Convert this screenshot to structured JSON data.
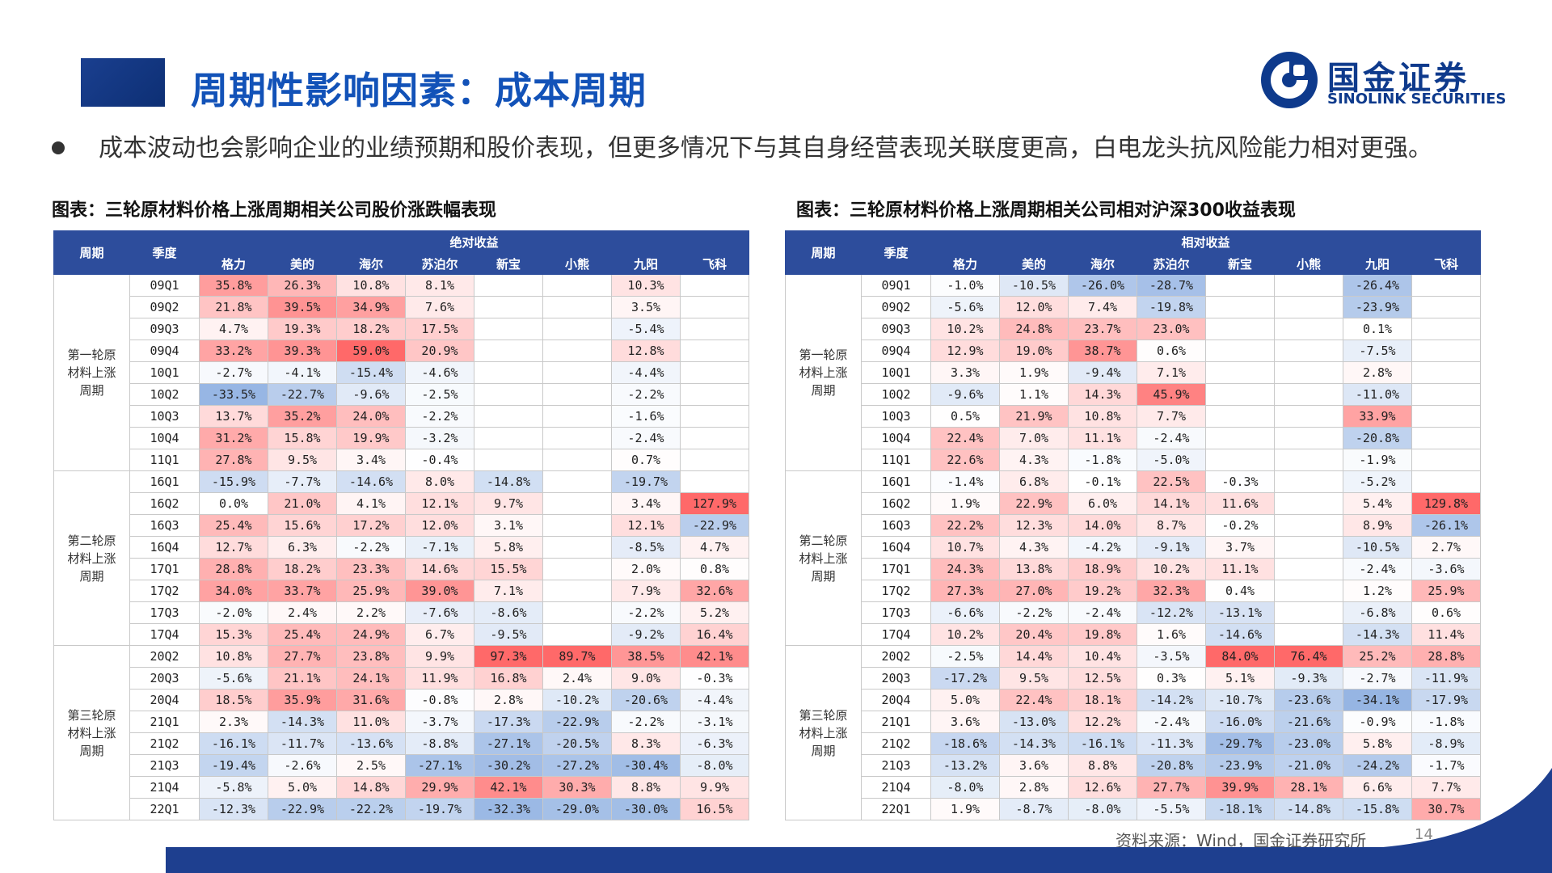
{
  "header": {
    "title": "周期性影响因素：成本周期"
  },
  "logo": {
    "cn": "国金证券",
    "en": "SINOLINK SECURITIES"
  },
  "bullet": {
    "text": "成本波动也会影响企业的业绩预期和股价表现，但更多情况下与其自身经营表现关联度更高，白电龙头抗风险能力相对更强。"
  },
  "footer": {
    "source": "资料来源：Wind，国金证券研究所",
    "page": "14"
  },
  "colors": {
    "header_bg": "#2d4d9c",
    "title": "#1252b8",
    "neg": "#4a78c8",
    "pos": "#f06060"
  },
  "tables": [
    {
      "title": "图表：三轮原材料价格上涨周期相关公司股价涨跌幅表现",
      "h_period": "周期",
      "h_quarter": "季度",
      "h_group": "绝对收益",
      "companies": [
        "格力",
        "美的",
        "海尔",
        "苏泊尔",
        "新宝",
        "小熊",
        "九阳",
        "飞科"
      ],
      "blocks": [
        {
          "label": [
            "第一轮原",
            "材料上涨",
            "周期"
          ],
          "rows": [
            [
              "09Q1",
              "35.8%",
              "26.3%",
              "10.8%",
              "8.1%",
              "",
              "",
              "10.3%",
              ""
            ],
            [
              "09Q2",
              "21.8%",
              "39.5%",
              "34.9%",
              "7.6%",
              "",
              "",
              "3.5%",
              ""
            ],
            [
              "09Q3",
              "4.7%",
              "19.3%",
              "18.2%",
              "17.5%",
              "",
              "",
              "-5.4%",
              ""
            ],
            [
              "09Q4",
              "33.2%",
              "39.3%",
              "59.0%",
              "20.9%",
              "",
              "",
              "12.8%",
              ""
            ],
            [
              "10Q1",
              "-2.7%",
              "-4.1%",
              "-15.4%",
              "-4.6%",
              "",
              "",
              "-4.4%",
              ""
            ],
            [
              "10Q2",
              "-33.5%",
              "-22.7%",
              "-9.6%",
              "-2.5%",
              "",
              "",
              "-2.2%",
              ""
            ],
            [
              "10Q3",
              "13.7%",
              "35.2%",
              "24.0%",
              "-2.2%",
              "",
              "",
              "-1.6%",
              ""
            ],
            [
              "10Q4",
              "31.2%",
              "15.8%",
              "19.9%",
              "-3.2%",
              "",
              "",
              "-2.4%",
              ""
            ],
            [
              "11Q1",
              "27.8%",
              "9.5%",
              "3.4%",
              "-0.4%",
              "",
              "",
              "0.7%",
              ""
            ]
          ]
        },
        {
          "label": [
            "第二轮原",
            "材料上涨",
            "周期"
          ],
          "rows": [
            [
              "16Q1",
              "-15.9%",
              "-7.7%",
              "-14.6%",
              "8.0%",
              "-14.8%",
              "",
              "-19.7%",
              ""
            ],
            [
              "16Q2",
              "0.0%",
              "21.0%",
              "4.1%",
              "12.1%",
              "9.7%",
              "",
              "3.4%",
              "127.9%"
            ],
            [
              "16Q3",
              "25.4%",
              "15.6%",
              "17.2%",
              "12.0%",
              "3.1%",
              "",
              "12.1%",
              "-22.9%"
            ],
            [
              "16Q4",
              "12.7%",
              "6.3%",
              "-2.2%",
              "-7.1%",
              "5.8%",
              "",
              "-8.5%",
              "4.7%"
            ],
            [
              "17Q1",
              "28.8%",
              "18.2%",
              "23.3%",
              "14.6%",
              "15.5%",
              "",
              "2.0%",
              "0.8%"
            ],
            [
              "17Q2",
              "34.0%",
              "33.7%",
              "25.9%",
              "39.0%",
              "7.1%",
              "",
              "7.9%",
              "32.6%"
            ],
            [
              "17Q3",
              "-2.0%",
              "2.4%",
              "2.2%",
              "-7.6%",
              "-8.6%",
              "",
              "-2.2%",
              "5.2%"
            ],
            [
              "17Q4",
              "15.3%",
              "25.4%",
              "24.9%",
              "6.7%",
              "-9.5%",
              "",
              "-9.2%",
              "16.4%"
            ]
          ]
        },
        {
          "label": [
            "第三轮原",
            "材料上涨",
            "周期"
          ],
          "rows": [
            [
              "20Q2",
              "10.8%",
              "27.7%",
              "23.8%",
              "9.9%",
              "97.3%",
              "89.7%",
              "38.5%",
              "42.1%"
            ],
            [
              "20Q3",
              "-5.6%",
              "21.1%",
              "24.1%",
              "11.9%",
              "16.8%",
              "2.4%",
              "9.0%",
              "-0.3%"
            ],
            [
              "20Q4",
              "18.5%",
              "35.9%",
              "31.6%",
              "-0.8%",
              "2.8%",
              "-10.2%",
              "-20.6%",
              "-4.4%"
            ],
            [
              "21Q1",
              "2.3%",
              "-14.3%",
              "11.0%",
              "-3.7%",
              "-17.3%",
              "-22.9%",
              "-2.2%",
              "-3.1%"
            ],
            [
              "21Q2",
              "-16.1%",
              "-11.7%",
              "-13.6%",
              "-8.8%",
              "-27.1%",
              "-20.5%",
              "8.3%",
              "-6.3%"
            ],
            [
              "21Q3",
              "-19.4%",
              "-2.6%",
              "2.5%",
              "-27.1%",
              "-30.2%",
              "-27.2%",
              "-30.4%",
              "-8.0%"
            ],
            [
              "21Q4",
              "-5.8%",
              "5.0%",
              "14.8%",
              "29.9%",
              "42.1%",
              "30.3%",
              "8.8%",
              "9.9%"
            ],
            [
              "22Q1",
              "-12.3%",
              "-22.9%",
              "-22.2%",
              "-19.7%",
              "-32.3%",
              "-29.0%",
              "-30.0%",
              "16.5%"
            ]
          ]
        }
      ]
    },
    {
      "title": "图表：三轮原材料价格上涨周期相关公司相对沪深300收益表现",
      "h_period": "周期",
      "h_quarter": "季度",
      "h_group": "相对收益",
      "companies": [
        "格力",
        "美的",
        "海尔",
        "苏泊尔",
        "新宝",
        "小熊",
        "九阳",
        "飞科"
      ],
      "blocks": [
        {
          "label": [
            "第一轮原",
            "材料上涨",
            "周期"
          ],
          "rows": [
            [
              "09Q1",
              "-1.0%",
              "-10.5%",
              "-26.0%",
              "-28.7%",
              "",
              "",
              "-26.4%",
              ""
            ],
            [
              "09Q2",
              "-5.6%",
              "12.0%",
              "7.4%",
              "-19.8%",
              "",
              "",
              "-23.9%",
              ""
            ],
            [
              "09Q3",
              "10.2%",
              "24.8%",
              "23.7%",
              "23.0%",
              "",
              "",
              "0.1%",
              ""
            ],
            [
              "09Q4",
              "12.9%",
              "19.0%",
              "38.7%",
              "0.6%",
              "",
              "",
              "-7.5%",
              ""
            ],
            [
              "10Q1",
              "3.3%",
              "1.9%",
              "-9.4%",
              "7.1%",
              "",
              "",
              "2.8%",
              ""
            ],
            [
              "10Q2",
              "-9.6%",
              "1.1%",
              "14.3%",
              "45.9%",
              "",
              "",
              "-11.0%",
              ""
            ],
            [
              "10Q3",
              "0.5%",
              "21.9%",
              "10.8%",
              "7.7%",
              "",
              "",
              "33.9%",
              ""
            ],
            [
              "10Q4",
              "22.4%",
              "7.0%",
              "11.1%",
              "-2.4%",
              "",
              "",
              "-20.8%",
              ""
            ],
            [
              "11Q1",
              "22.6%",
              "4.3%",
              "-1.8%",
              "-5.0%",
              "",
              "",
              "-1.9%",
              ""
            ]
          ]
        },
        {
          "label": [
            "第二轮原",
            "材料上涨",
            "周期"
          ],
          "rows": [
            [
              "16Q1",
              "-1.4%",
              "6.8%",
              "-0.1%",
              "22.5%",
              "-0.3%",
              "",
              "-5.2%",
              ""
            ],
            [
              "16Q2",
              "1.9%",
              "22.9%",
              "6.0%",
              "14.1%",
              "11.6%",
              "",
              "5.4%",
              "129.8%"
            ],
            [
              "16Q3",
              "22.2%",
              "12.3%",
              "14.0%",
              "8.7%",
              "-0.2%",
              "",
              "8.9%",
              "-26.1%"
            ],
            [
              "16Q4",
              "10.7%",
              "4.3%",
              "-4.2%",
              "-9.1%",
              "3.7%",
              "",
              "-10.5%",
              "2.7%"
            ],
            [
              "17Q1",
              "24.3%",
              "13.8%",
              "18.9%",
              "10.2%",
              "11.1%",
              "",
              "-2.4%",
              "-3.6%"
            ],
            [
              "17Q2",
              "27.3%",
              "27.0%",
              "19.2%",
              "32.3%",
              "0.4%",
              "",
              "1.2%",
              "25.9%"
            ],
            [
              "17Q3",
              "-6.6%",
              "-2.2%",
              "-2.4%",
              "-12.2%",
              "-13.1%",
              "",
              "-6.8%",
              "0.6%"
            ],
            [
              "17Q4",
              "10.2%",
              "20.4%",
              "19.8%",
              "1.6%",
              "-14.6%",
              "",
              "-14.3%",
              "11.4%"
            ]
          ]
        },
        {
          "label": [
            "第三轮原",
            "材料上涨",
            "周期"
          ],
          "rows": [
            [
              "20Q2",
              "-2.5%",
              "14.4%",
              "10.4%",
              "-3.5%",
              "84.0%",
              "76.4%",
              "25.2%",
              "28.8%"
            ],
            [
              "20Q3",
              "-17.2%",
              "9.5%",
              "12.5%",
              "0.3%",
              "5.1%",
              "-9.3%",
              "-2.7%",
              "-11.9%"
            ],
            [
              "20Q4",
              "5.0%",
              "22.4%",
              "18.1%",
              "-14.2%",
              "-10.7%",
              "-23.6%",
              "-34.1%",
              "-17.9%"
            ],
            [
              "21Q1",
              "3.6%",
              "-13.0%",
              "12.2%",
              "-2.4%",
              "-16.0%",
              "-21.6%",
              "-0.9%",
              "-1.8%"
            ],
            [
              "21Q2",
              "-18.6%",
              "-14.3%",
              "-16.1%",
              "-11.3%",
              "-29.7%",
              "-23.0%",
              "5.8%",
              "-8.9%"
            ],
            [
              "21Q3",
              "-13.2%",
              "3.6%",
              "8.8%",
              "-20.8%",
              "-23.9%",
              "-21.0%",
              "-24.2%",
              "-1.7%"
            ],
            [
              "21Q4",
              "-8.0%",
              "2.8%",
              "12.6%",
              "27.7%",
              "39.9%",
              "28.1%",
              "6.6%",
              "7.7%"
            ],
            [
              "22Q1",
              "1.9%",
              "-8.7%",
              "-8.0%",
              "-5.5%",
              "-18.1%",
              "-14.8%",
              "-15.8%",
              "30.7%"
            ]
          ]
        }
      ]
    }
  ]
}
